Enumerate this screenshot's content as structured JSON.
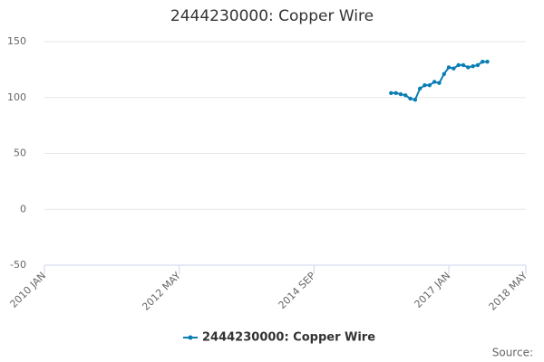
{
  "chart_data": {
    "type": "line",
    "title": "2444230000: Copper Wire",
    "x": [
      "2016-01",
      "2016-02",
      "2016-03",
      "2016-04",
      "2016-05",
      "2016-06",
      "2016-07",
      "2016-08",
      "2016-09",
      "2016-10",
      "2016-11",
      "2016-12",
      "2017-01",
      "2017-02",
      "2017-03",
      "2017-04",
      "2017-05",
      "2017-06",
      "2017-07",
      "2017-08",
      "2017-09"
    ],
    "series": [
      {
        "name": "2444230000: Copper Wire",
        "color": "#0a7db5",
        "values": [
          104,
          104,
          103,
          102,
          99,
          98,
          108,
          111,
          111,
          114,
          113,
          121,
          127,
          126,
          129,
          129,
          127,
          128,
          129,
          132,
          132
        ]
      }
    ],
    "xlim": [
      "2010-01",
      "2018-05"
    ],
    "xticks": [
      {
        "value": "2010-01",
        "label": "2010 JAN"
      },
      {
        "value": "2012-05",
        "label": "2012 MAY"
      },
      {
        "value": "2014-09",
        "label": "2014 SEP"
      },
      {
        "value": "2017-01",
        "label": "2017 JAN"
      },
      {
        "value": "2018-05",
        "label": "2018 MAY"
      }
    ],
    "ylim": [
      -50,
      150
    ],
    "yticks": [
      -50,
      0,
      50,
      100,
      150
    ],
    "grid": true,
    "source": "Source:"
  }
}
